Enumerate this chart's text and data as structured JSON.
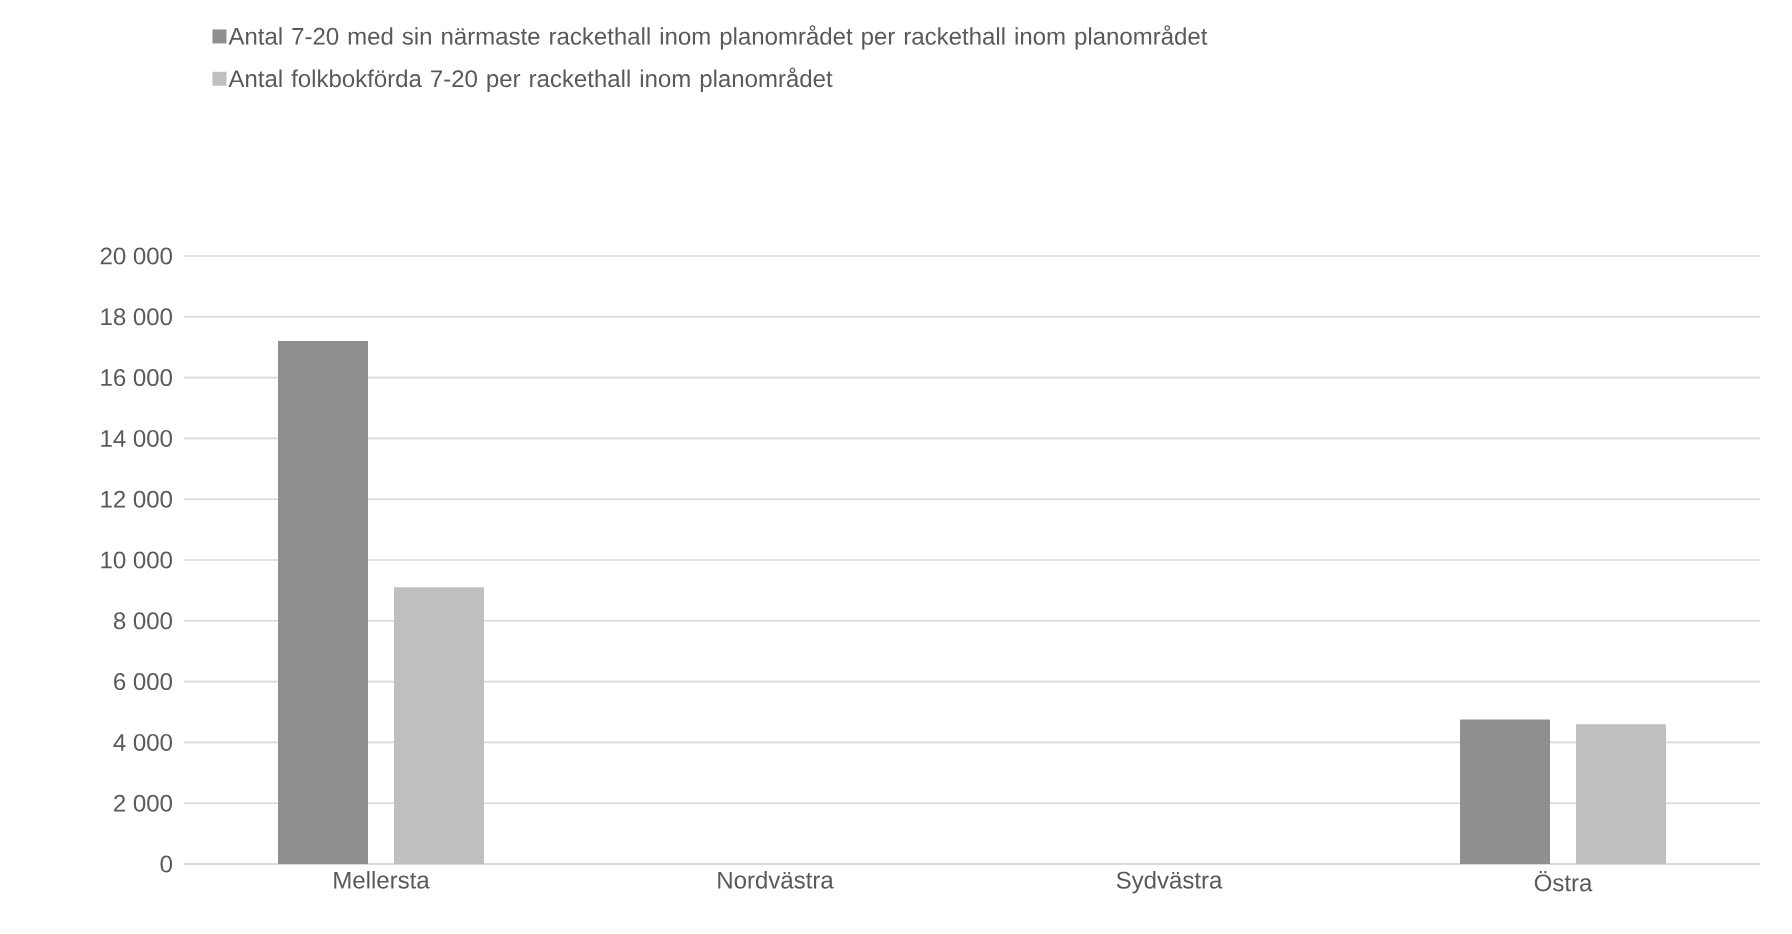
{
  "chart_data": {
    "type": "bar",
    "categories": [
      "Mellersta",
      "Nordvästra",
      "Sydvästra",
      "Östra"
    ],
    "series": [
      {
        "name": "Antal 7-20 med sin närmaste rackethall inom planområdet per rackethall inom planområdet",
        "color": "#8f8f8f",
        "values": [
          17200,
          null,
          null,
          4750
        ]
      },
      {
        "name": "Antal folkbokförda 7-20 per rackethall inom planområdet",
        "color": "#bfbfbf",
        "values": [
          9100,
          null,
          null,
          4600
        ]
      }
    ],
    "ylim": [
      0,
      20000
    ],
    "yticks": [
      {
        "value": 0,
        "label": "0"
      },
      {
        "value": 2000,
        "label": "2 000"
      },
      {
        "value": 4000,
        "label": "4 000"
      },
      {
        "value": 6000,
        "label": "6 000"
      },
      {
        "value": 8000,
        "label": "8 000"
      },
      {
        "value": 10000,
        "label": "10 000"
      },
      {
        "value": 12000,
        "label": "12 000"
      },
      {
        "value": 14000,
        "label": "14 000"
      },
      {
        "value": 16000,
        "label": "16 000"
      },
      {
        "value": 18000,
        "label": "18 000"
      },
      {
        "value": 20000,
        "label": "20 000"
      }
    ],
    "grid": "y",
    "legend": "top left"
  }
}
